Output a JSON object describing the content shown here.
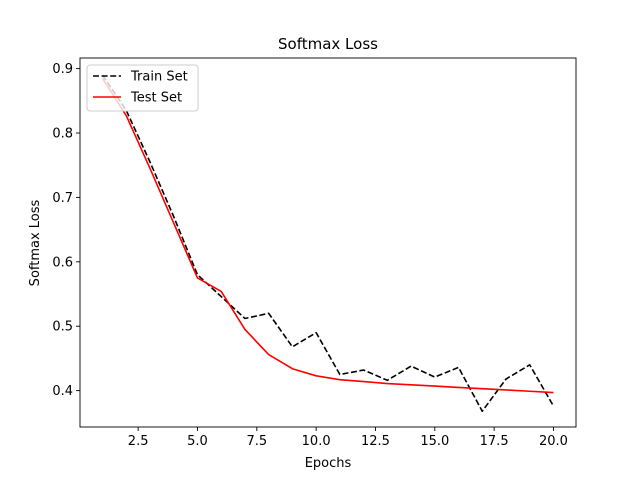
{
  "chart_data": {
    "type": "line",
    "title": "Softmax Loss",
    "xlabel": "Epochs",
    "ylabel": "Softmax Loss",
    "xlim": [
      0.05,
      20.95
    ],
    "ylim": [
      0.3435,
      0.9165
    ],
    "xticks": [
      2.5,
      5.0,
      7.5,
      10.0,
      12.5,
      15.0,
      17.5,
      20.0
    ],
    "xtick_labels": [
      "2.5",
      "5.0",
      "7.5",
      "10.0",
      "12.5",
      "15.0",
      "17.5",
      "20.0"
    ],
    "yticks": [
      0.4,
      0.5,
      0.6,
      0.7,
      0.8,
      0.9
    ],
    "ytick_labels": [
      "0.4",
      "0.5",
      "0.6",
      "0.7",
      "0.8",
      "0.9"
    ],
    "grid": false,
    "legend_position": "top-left",
    "x": [
      1,
      2,
      3,
      4,
      5,
      6,
      7,
      8,
      9,
      10,
      11,
      12,
      13,
      14,
      15,
      16,
      17,
      18,
      19,
      20
    ],
    "series": [
      {
        "name": "Train Set",
        "color": "#000000",
        "dash": "dashed",
        "values": [
          0.89,
          0.835,
          0.755,
          0.67,
          0.58,
          0.546,
          0.512,
          0.52,
          0.468,
          0.49,
          0.425,
          0.432,
          0.416,
          0.438,
          0.421,
          0.436,
          0.368,
          0.418,
          0.44,
          0.376
        ]
      },
      {
        "name": "Test Set",
        "color": "#ff0000",
        "dash": "solid",
        "values": [
          0.885,
          0.827,
          0.745,
          0.66,
          0.575,
          0.554,
          0.495,
          0.456,
          0.434,
          0.423,
          0.417,
          0.414,
          0.411,
          0.409,
          0.407,
          0.405,
          0.403,
          0.401,
          0.399,
          0.397
        ]
      }
    ]
  }
}
